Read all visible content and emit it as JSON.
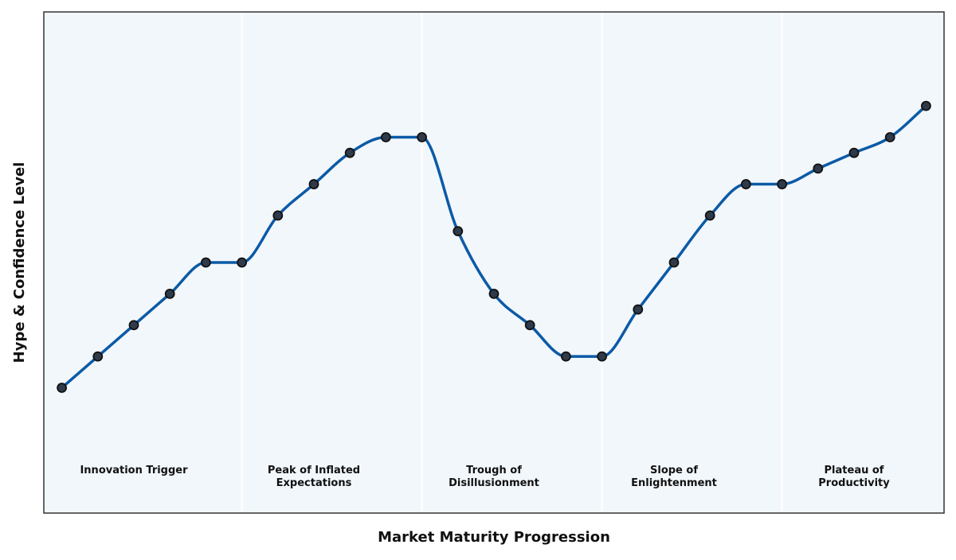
{
  "chart_data": {
    "type": "line",
    "title": "",
    "xlabel": "Market Maturity Progression",
    "ylabel": "Hype & Confidence Level",
    "x": [
      0,
      1,
      2,
      3,
      4,
      5,
      6,
      7,
      8,
      9,
      10,
      11,
      12,
      13,
      14,
      15,
      16,
      17,
      18,
      19,
      20,
      21,
      22,
      23,
      24
    ],
    "series": [
      {
        "name": "",
        "values": [
          2,
          3,
          4,
          5,
          6,
          6,
          7.5,
          8.5,
          9.5,
          10,
          10,
          7,
          5,
          4,
          3,
          3,
          4.5,
          6,
          7.5,
          8.5,
          8.5,
          9,
          9.5,
          10,
          11
        ]
      }
    ],
    "phases": [
      {
        "name": "innovation-trigger",
        "lines": [
          "Innovation Trigger"
        ],
        "center_x": 2
      },
      {
        "name": "peak-of-inflated-expectations",
        "lines": [
          "Peak of Inflated",
          "Expectations"
        ],
        "center_x": 7
      },
      {
        "name": "trough-of-disillusionment",
        "lines": [
          "Trough of",
          "Disillusionment"
        ],
        "center_x": 12
      },
      {
        "name": "slope-of-enlightenment",
        "lines": [
          "Slope of",
          "Enlightenment"
        ],
        "center_x": 17
      },
      {
        "name": "plateau-of-productivity",
        "lines": [
          "Plateau of",
          "Productivity"
        ],
        "center_x": 22
      }
    ],
    "phase_boundaries": [
      5,
      10,
      15,
      20
    ],
    "xlim": [
      -0.5,
      24.5
    ],
    "ylim": [
      -2,
      14
    ],
    "grid": false,
    "ticks_shown": false,
    "legend": "none",
    "colors": {
      "line": "#0b5aa6",
      "marker_fill": "#2f3a4a",
      "marker_edge": "#111111",
      "plot_background": "#f2f7fb",
      "boundary": "#ffffff",
      "frame": "#333333"
    }
  }
}
